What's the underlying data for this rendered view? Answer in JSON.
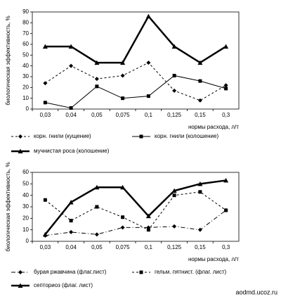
{
  "chart_data": [
    {
      "type": "line",
      "y_label": "биологическая эффективность, %",
      "x_label": "нормы расхода, л/т",
      "categories": [
        "0,03",
        "0,04",
        "0,05",
        "0,075",
        "0,1",
        "0,125",
        "0,15",
        "0,3"
      ],
      "ylim": [
        0,
        90
      ],
      "yticks": [
        0,
        10,
        20,
        30,
        40,
        50,
        60,
        70,
        80,
        90
      ],
      "series": [
        {
          "name": "корн. гнили (кущение)",
          "color": "#000000",
          "dash": "3 3",
          "width": 1,
          "marker": "diamond",
          "values": [
            24,
            40,
            28,
            31,
            43,
            17,
            8,
            22
          ]
        },
        {
          "name": "корн. гнили (колошение)",
          "color": "#000000",
          "dash": "none",
          "width": 1,
          "marker": "square",
          "values": [
            6,
            1,
            21,
            10,
            12,
            31,
            26,
            19
          ]
        },
        {
          "name": "мучнистая роса (колошение)",
          "color": "#000000",
          "dash": "none",
          "width": 2.5,
          "marker": "triangle",
          "values": [
            58,
            58,
            43,
            43,
            86,
            58,
            43,
            58
          ]
        }
      ]
    },
    {
      "type": "line",
      "y_label": "биологическая эффективность, %",
      "x_label": "нормы расхода, л/т",
      "categories": [
        "0,03",
        "0,04",
        "0,05",
        "0,075",
        "0,1",
        "0,125",
        "0,15",
        "0,3"
      ],
      "ylim": [
        0,
        60
      ],
      "yticks": [
        0,
        10,
        20,
        30,
        40,
        50,
        60
      ],
      "series": [
        {
          "name": "бурая ржавчина (флаг.лист)",
          "color": "#000000",
          "dash": "6 3 1 3",
          "width": 1,
          "marker": "diamond",
          "values": [
            5,
            8,
            6,
            12,
            12,
            13,
            10,
            27
          ]
        },
        {
          "name": "гельм. пятнист. (флаг. лист)",
          "color": "#000000",
          "dash": "3 3",
          "width": 1,
          "marker": "square",
          "values": [
            36,
            18,
            30,
            21,
            10,
            40,
            43,
            27
          ]
        },
        {
          "name": "септориоз (флаг. лист)",
          "color": "#000000",
          "dash": "none",
          "width": 2.5,
          "marker": "triangle",
          "values": [
            6,
            34,
            47,
            47,
            22,
            44,
            50,
            53
          ]
        }
      ]
    }
  ],
  "watermark": "aodmd.ucoz.ru"
}
